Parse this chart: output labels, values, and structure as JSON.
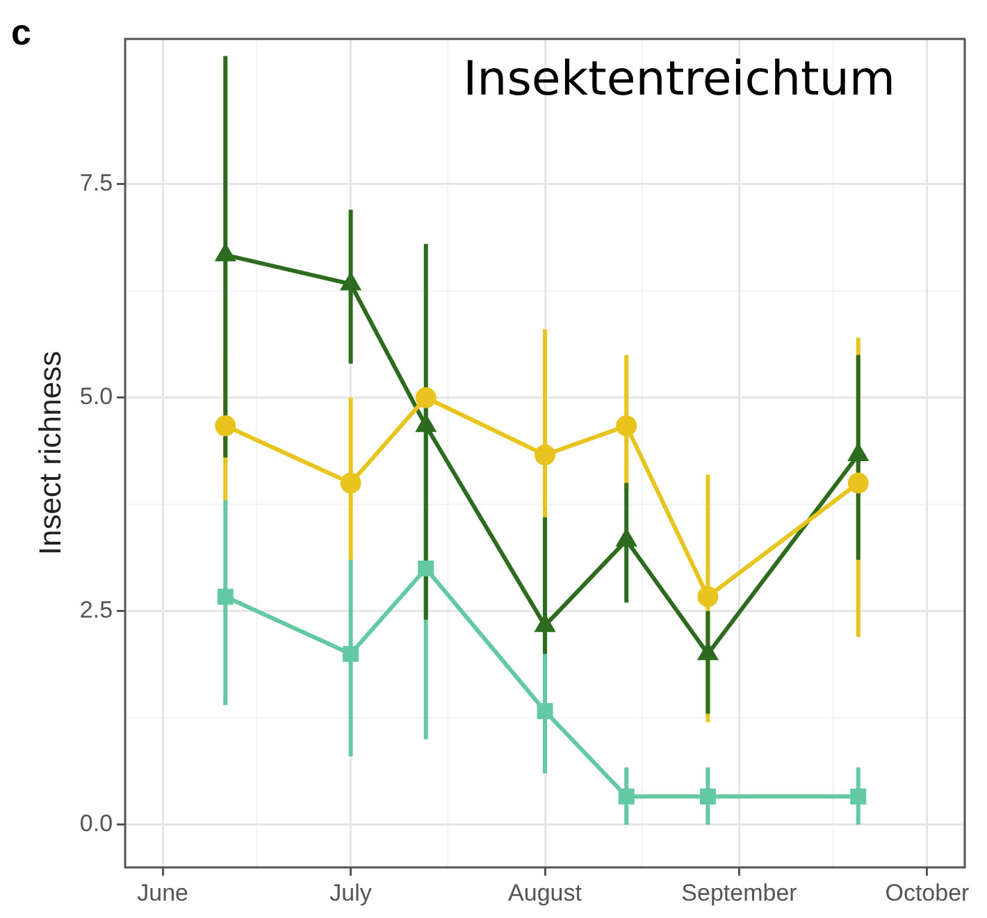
{
  "chart_data": {
    "type": "line",
    "title": "Insektentreichtum",
    "ylabel": "Insect richness",
    "annotations": [
      "c"
    ],
    "xlim": [
      "--05-26",
      "--10-07"
    ],
    "xticks": [
      {
        "value": "--06-01",
        "label": "June"
      },
      {
        "value": "--07-01",
        "label": "July"
      },
      {
        "value": "--08-01",
        "label": "August"
      },
      {
        "value": "--09-01",
        "label": "September"
      },
      {
        "value": "--10-01",
        "label": "October"
      }
    ],
    "ylim": [
      -0.5,
      9.2
    ],
    "yticks": [
      {
        "value": 0,
        "label": "0.0"
      },
      2.5,
      {
        "value": 5,
        "label": "5.0"
      },
      7.5
    ],
    "grid": true,
    "legend": false,
    "line_style": "solid",
    "series": [
      {
        "color": "#e8c41e",
        "marker": "circle",
        "x": [
          "--06-11",
          "--07-01",
          "--07-13",
          "--08-01",
          "--08-14",
          "--08-27",
          "--09-20"
        ],
        "values": [
          4.67,
          4.0,
          5.0,
          4.33,
          4.67,
          2.67,
          4.0
        ],
        "errors": [
          [
            3.8,
            5.5
          ],
          [
            3.1,
            5.0
          ],
          null,
          [
            3.6,
            5.8
          ],
          [
            3.9,
            5.5
          ],
          [
            1.2,
            4.1
          ],
          [
            2.2,
            5.7
          ]
        ]
      },
      {
        "color": "#63c9a3",
        "marker": "square",
        "x": [
          "--06-11",
          "--07-01",
          "--07-13",
          "--08-01",
          "--08-14",
          "--08-27",
          "--09-20"
        ],
        "values": [
          2.67,
          2.0,
          3.0,
          1.33,
          0.33,
          0.33,
          0.33
        ],
        "errors": [
          [
            1.4,
            3.8
          ],
          [
            0.8,
            3.1
          ],
          [
            1.0,
            4.9
          ],
          [
            0.6,
            2.5
          ],
          [
            0,
            0.67
          ],
          [
            0,
            0.67
          ],
          [
            0,
            0.67
          ]
        ]
      },
      {
        "color": "#2d6b1f",
        "marker": "triangle",
        "x": [
          "--06-11",
          "--07-01",
          "--07-13",
          "--08-01",
          "--08-14",
          "--08-27",
          "--09-20"
        ],
        "values": [
          6.67,
          6.33,
          4.67,
          2.33,
          3.33,
          2.0,
          4.33
        ],
        "errors": [
          [
            4.3,
            9.0
          ],
          [
            5.4,
            7.2
          ],
          [
            2.4,
            6.8
          ],
          [
            2.0,
            3.6
          ],
          [
            2.6,
            4.0
          ],
          [
            1.3,
            2.5
          ],
          [
            3.1,
            5.5
          ]
        ]
      }
    ]
  }
}
